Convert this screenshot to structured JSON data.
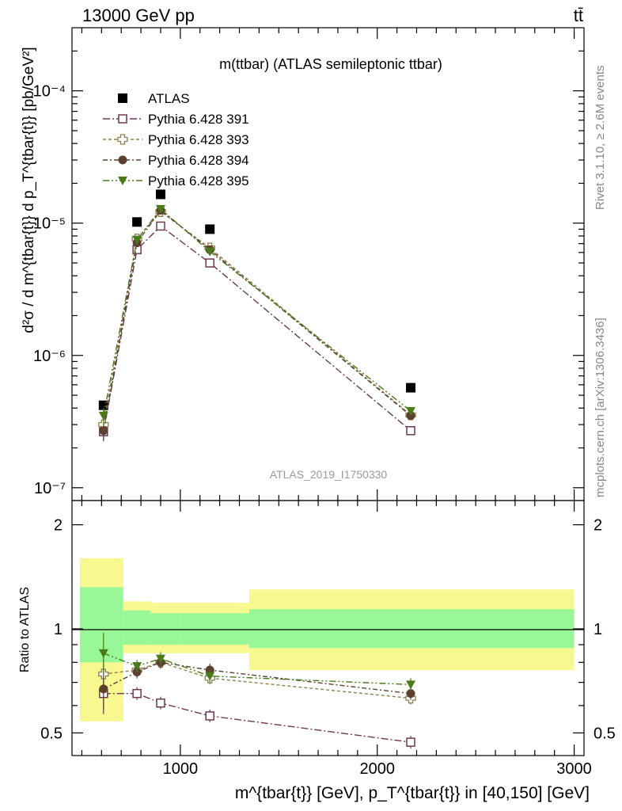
{
  "header": {
    "energy_label": "13000 GeV pp",
    "process_label": "tt̄"
  },
  "side_labels": {
    "rivet": "Rivet 3.1.10, ≥ 2.6M events",
    "mcplots": "mcplots.cern.ch [arXiv:1306.3436]"
  },
  "colors": {
    "atlas": "#000000",
    "p391": "#6b3a4f",
    "p393": "#8e8050",
    "p394": "#5c4030",
    "p395": "#4a7a1a",
    "band_inner": "#98f898",
    "band_outer": "#f8f890"
  },
  "chart_data": [
    {
      "type": "scatter",
      "title": "m(ttbar) (ATLAS semileptonic ttbar)",
      "watermark": "ATLAS_2019_I1750330",
      "ylabel": "d²σ / d m^{tbar{t}} d p_T^{tbar{t}} [pb/GeV²]",
      "yscale": "log",
      "ylim": [
        8e-08,
        0.0003
      ],
      "yticks": [
        1e-07,
        1e-06,
        1e-05,
        0.0001
      ],
      "ytick_labels": [
        "10⁻⁷",
        "10⁻⁶",
        "10⁻⁵",
        "10⁻⁴"
      ],
      "xlim": [
        450,
        3050
      ],
      "legend_position": "top-left",
      "x": [
        610,
        780,
        900,
        1150,
        2170
      ],
      "series": [
        {
          "name": "ATLAS",
          "values": [
            4.2e-07,
            1.02e-05,
            1.65e-05,
            9e-06,
            5.7e-07
          ]
        },
        {
          "name": "Pythia 6.428 391",
          "values": [
            2.65e-07,
            6.3e-06,
            9.5e-06,
            5e-06,
            2.7e-07
          ]
        },
        {
          "name": "Pythia 6.428 393",
          "values": [
            3e-07,
            7.6e-06,
            1.22e-05,
            6.5e-06,
            3.55e-07
          ]
        },
        {
          "name": "Pythia 6.428 394",
          "values": [
            2.7e-07,
            7.1e-06,
            1.25e-05,
            6.3e-06,
            3.5e-07
          ]
        },
        {
          "name": "Pythia 6.428 395",
          "values": [
            3.5e-07,
            7.5e-06,
            1.28e-05,
            6.1e-06,
            3.8e-07
          ]
        }
      ]
    },
    {
      "type": "scatter",
      "ylabel": "Ratio to ATLAS",
      "xlabel": "m^{tbar{t}} [GeV], p_T^{tbar{t}} in [40,150] [GeV]",
      "xlim": [
        450,
        3050
      ],
      "xticks": [
        1000,
        2000,
        3000
      ],
      "xtick_labels": [
        "1000",
        "2000",
        "3000"
      ],
      "ylim": [
        0.43,
        2.35
      ],
      "yscale": "log",
      "yticks": [
        0.5,
        1,
        2
      ],
      "ytick_labels": [
        "0.5",
        "1",
        "2"
      ],
      "x": [
        610,
        780,
        900,
        1150,
        2170
      ],
      "bins": [
        [
          490,
          710
        ],
        [
          710,
          850
        ],
        [
          850,
          1000
        ],
        [
          1000,
          1350
        ],
        [
          1350,
          3000
        ]
      ],
      "band_inner": [
        [
          0.8,
          1.32
        ],
        [
          0.9,
          1.13
        ],
        [
          0.9,
          1.11
        ],
        [
          0.9,
          1.11
        ],
        [
          0.88,
          1.14
        ]
      ],
      "band_outer": [
        [
          0.54,
          1.6
        ],
        [
          0.85,
          1.2
        ],
        [
          0.85,
          1.19
        ],
        [
          0.85,
          1.19
        ],
        [
          0.76,
          1.3
        ]
      ],
      "series": [
        {
          "name": "Pythia 6.428 391",
          "values": [
            0.65,
            0.65,
            0.61,
            0.56,
            0.47
          ]
        },
        {
          "name": "Pythia 6.428 393",
          "values": [
            0.74,
            0.76,
            0.8,
            0.72,
            0.63
          ]
        },
        {
          "name": "Pythia 6.428 394",
          "values": [
            0.67,
            0.75,
            0.8,
            0.76,
            0.65
          ]
        },
        {
          "name": "Pythia 6.428 395",
          "values": [
            0.85,
            0.78,
            0.82,
            0.73,
            0.69
          ]
        }
      ]
    }
  ]
}
